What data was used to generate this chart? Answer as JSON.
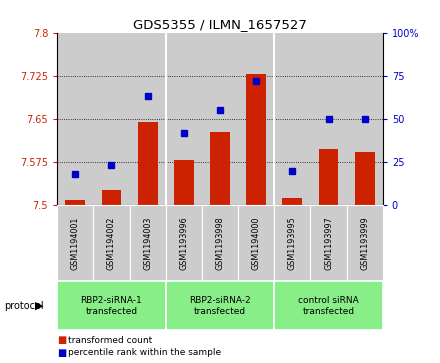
{
  "title": "GDS5355 / ILMN_1657527",
  "samples": [
    "GSM1194001",
    "GSM1194002",
    "GSM1194003",
    "GSM1193996",
    "GSM1193998",
    "GSM1194000",
    "GSM1193995",
    "GSM1193997",
    "GSM1193999"
  ],
  "red_values": [
    7.508,
    7.527,
    7.645,
    7.578,
    7.628,
    7.728,
    7.513,
    7.598,
    7.593
  ],
  "blue_values": [
    18,
    23,
    63,
    42,
    55,
    72,
    20,
    50,
    50
  ],
  "ylim_left": [
    7.5,
    7.8
  ],
  "ylim_right": [
    0,
    100
  ],
  "yticks_left": [
    7.5,
    7.575,
    7.65,
    7.725,
    7.8
  ],
  "yticks_right": [
    0,
    25,
    50,
    75,
    100
  ],
  "ytick_labels_left": [
    "7.5",
    "7.575",
    "7.65",
    "7.725",
    "7.8"
  ],
  "ytick_labels_right": [
    "0",
    "25",
    "50",
    "75",
    "100%"
  ],
  "groups": [
    {
      "label": "RBP2-siRNA-1\ntransfected",
      "indices": [
        0,
        1,
        2
      ]
    },
    {
      "label": "RBP2-siRNA-2\ntransfected",
      "indices": [
        3,
        4,
        5
      ]
    },
    {
      "label": "control siRNA\ntransfected",
      "indices": [
        6,
        7,
        8
      ]
    }
  ],
  "bar_color": "#CC2200",
  "dot_color": "#0000CC",
  "bar_width": 0.55,
  "bg_color": "#CCCCCC",
  "green_color": "#88EE88",
  "legend_red": "transformed count",
  "legend_blue": "percentile rank within the sample",
  "protocol_label": "protocol"
}
